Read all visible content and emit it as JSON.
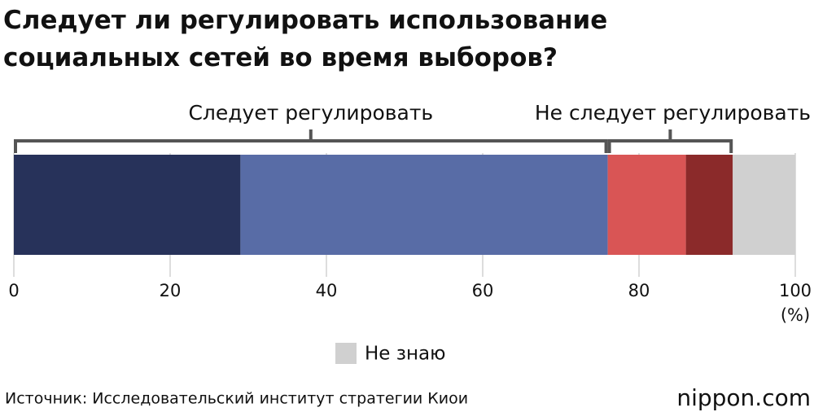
{
  "chart_data": {
    "type": "bar",
    "orientation": "horizontal",
    "stacked": true,
    "title": "Следует ли регулировать использование\nсоциальных сетей во время выборов?",
    "series": [
      {
        "color": "#27325a",
        "values": [
          29
        ]
      },
      {
        "color": "#586ca6",
        "values": [
          47
        ]
      },
      {
        "color": "#d95555",
        "values": [
          10
        ]
      },
      {
        "color": "#8b2a2a",
        "values": [
          6
        ]
      },
      {
        "name": "Не знаю",
        "color": "#d0d0d0",
        "values": [
          8
        ]
      }
    ],
    "brackets": [
      {
        "label": "Следует регулировать",
        "series": [
          0,
          1
        ]
      },
      {
        "label": "Не следует регулировать",
        "series": [
          2,
          3
        ]
      }
    ],
    "xlim": [
      0,
      100
    ],
    "xticks": [
      0,
      20,
      40,
      60,
      80,
      100
    ],
    "x_unit": "(%)",
    "source": "Источник: Исследовательский институт стратегии Киои",
    "logo": "nippon.com"
  }
}
